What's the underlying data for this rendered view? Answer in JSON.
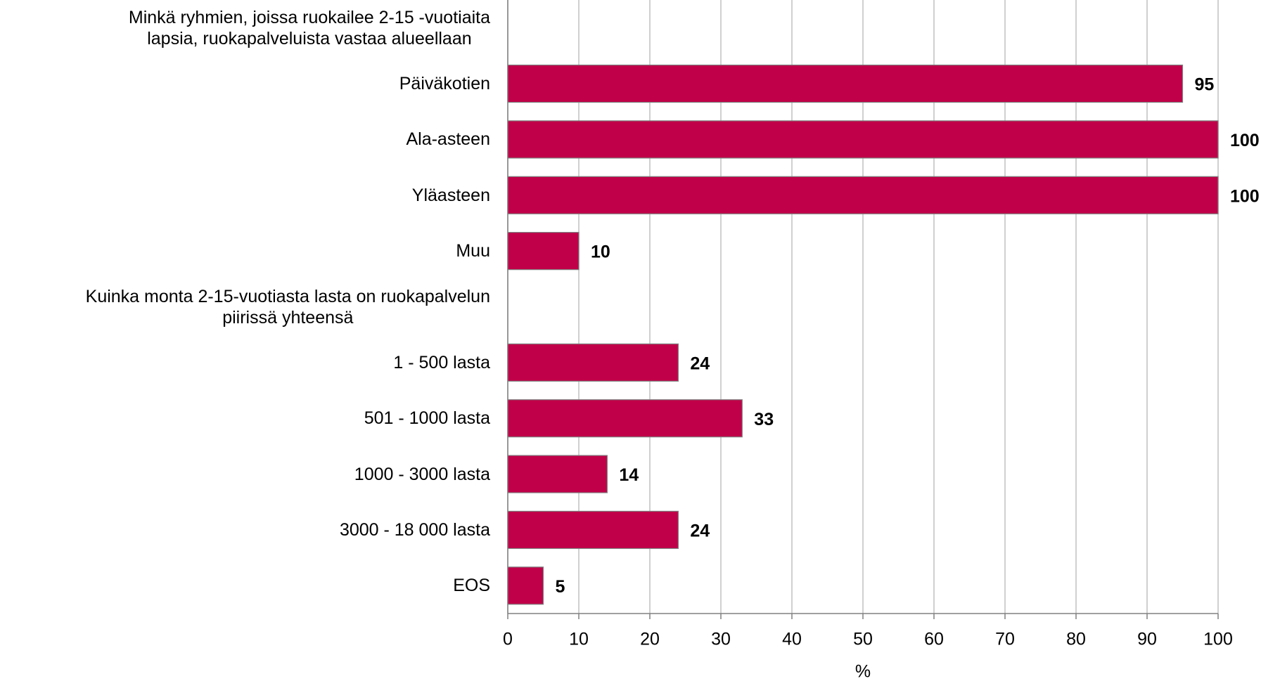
{
  "chart_data": {
    "type": "bar",
    "orientation": "horizontal",
    "categories": [
      "Minkä ryhmien, joissa ruokailee 2-15 -vuotiaita\nlapsia, ruokapalveluista vastaa alueellaan",
      "Päiväkotien",
      "Ala-asteen",
      "Yläasteen",
      "Muu",
      "Kuinka monta 2-15-vuotiasta lasta on ruokapalvelun\npiirissä yhteensä",
      "1 - 500 lasta",
      "501 - 1000 lasta",
      "1000 - 3000 lasta",
      "3000 - 18 000 lasta",
      "EOS"
    ],
    "values": [
      null,
      95,
      100,
      100,
      10,
      null,
      24,
      33,
      14,
      24,
      5
    ],
    "color": "#c00048",
    "xlabel": "%",
    "xlim": [
      0,
      100
    ],
    "xticks": [
      0,
      10,
      20,
      30,
      40,
      50,
      60,
      70,
      80,
      90,
      100
    ],
    "grid": true
  }
}
